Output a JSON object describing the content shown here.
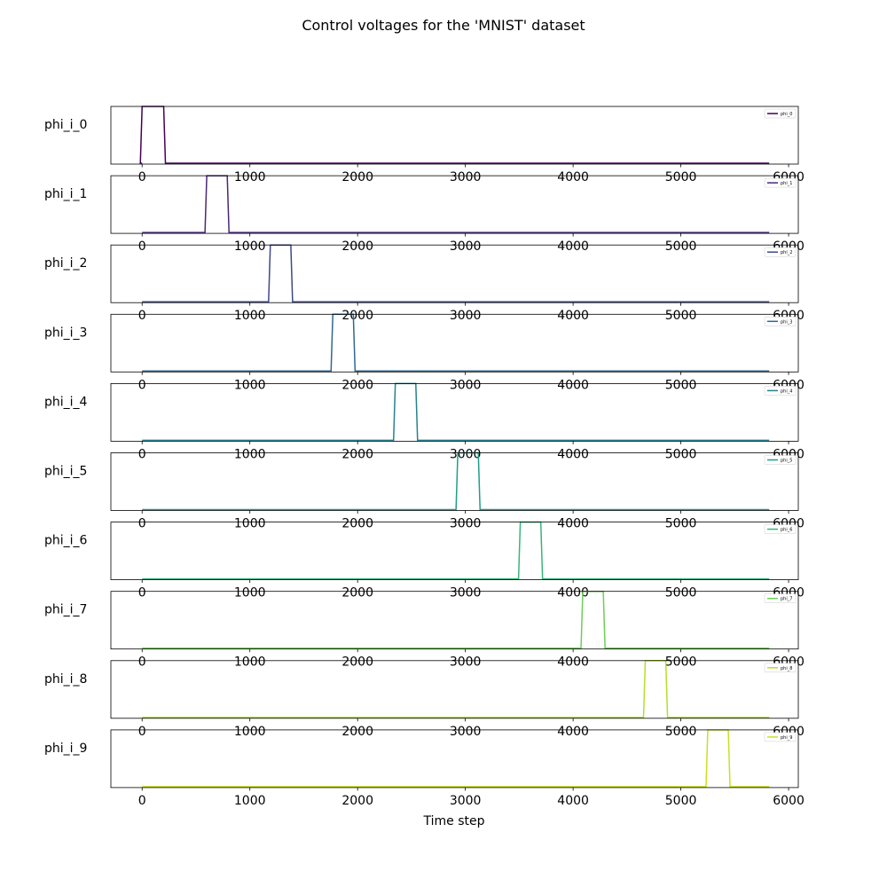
{
  "chart_data": {
    "type": "line",
    "title": "Control voltages for the 'MNIST' dataset",
    "xlabel": "Time step",
    "xlim": [
      -290,
      6090
    ],
    "ylim": [
      0,
      1
    ],
    "x_ticks": [
      0,
      1000,
      2000,
      3000,
      4000,
      5000,
      6000
    ],
    "x_tick_labels": [
      "0",
      "1000",
      "2000",
      "3000",
      "4000",
      "5000",
      "6000"
    ],
    "x_end": 5820,
    "legend_position": "upper right",
    "series": [
      {
        "row_label": "phi_i_0",
        "name": "phi_0",
        "color": "#440154",
        "pulse": [
          0,
          200
        ]
      },
      {
        "row_label": "phi_i_1",
        "name": "phi_1",
        "color": "#482878",
        "pulse": [
          600,
          790
        ]
      },
      {
        "row_label": "phi_i_2",
        "name": "phi_2",
        "color": "#3e4989",
        "pulse": [
          1190,
          1380
        ]
      },
      {
        "row_label": "phi_i_3",
        "name": "phi_3",
        "color": "#31688e",
        "pulse": [
          1770,
          1960
        ]
      },
      {
        "row_label": "phi_i_4",
        "name": "phi_4",
        "color": "#26828e",
        "pulse": [
          2350,
          2540
        ]
      },
      {
        "row_label": "phi_i_5",
        "name": "phi_5",
        "color": "#1f9e89",
        "pulse": [
          2930,
          3120
        ]
      },
      {
        "row_label": "phi_i_6",
        "name": "phi_6",
        "color": "#35b779",
        "pulse": [
          3510,
          3700
        ]
      },
      {
        "row_label": "phi_i_7",
        "name": "phi_7",
        "color": "#6ece58",
        "pulse": [
          4090,
          4280
        ]
      },
      {
        "row_label": "phi_i_8",
        "name": "phi_8",
        "color": "#b5de2b",
        "pulse": [
          4670,
          4860
        ]
      },
      {
        "row_label": "phi_i_9",
        "name": "phi_9",
        "color": "#c8e020",
        "pulse": [
          5250,
          5440
        ]
      }
    ]
  }
}
